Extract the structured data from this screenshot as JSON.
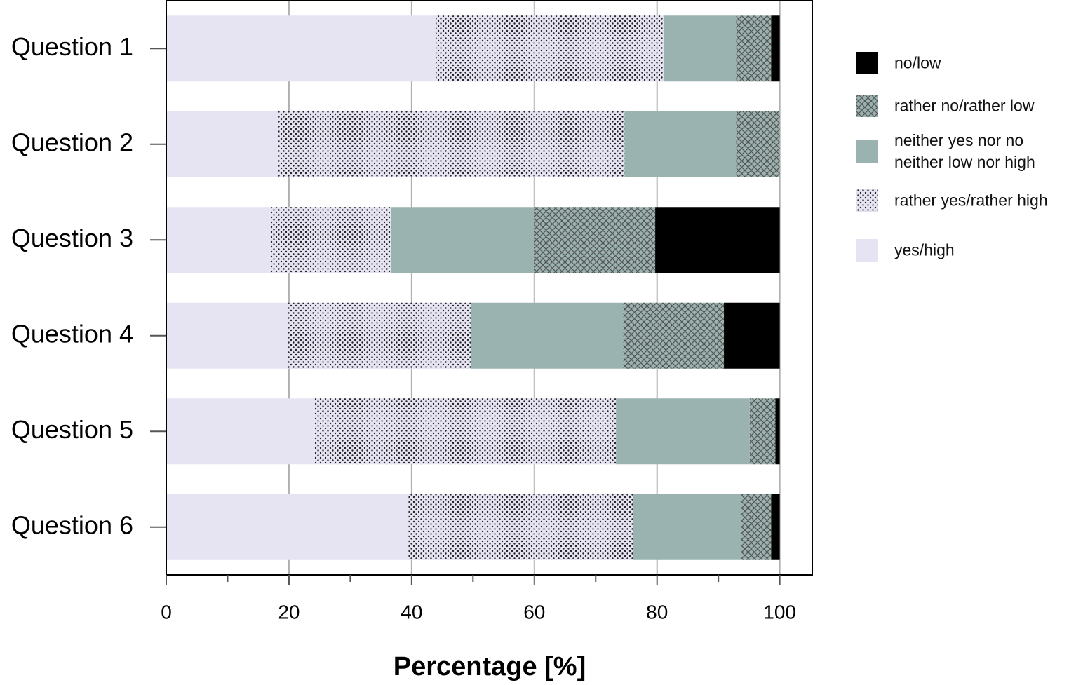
{
  "chart_data": {
    "type": "stacked-barh",
    "xlabel": "Percentage [%]",
    "categories": [
      "Question 1",
      "Question 2",
      "Question 3",
      "Question 4",
      "Question 5",
      "Question 6"
    ],
    "series": [
      {
        "name": "no/low",
        "color": "#000000",
        "hatch": "none",
        "values": [
          1.4,
          0,
          20.3,
          9.1,
          0.7,
          1.4
        ]
      },
      {
        "name": "rather no/rather low",
        "color": "#9bb3b0",
        "hatch": "cross",
        "values": [
          5.7,
          7.1,
          19.7,
          16.4,
          4.2,
          4.9
        ]
      },
      {
        "name": "neither yes nor no\nneither low nor high",
        "color": "#9bb3b0",
        "hatch": "none",
        "values": [
          11.8,
          18.2,
          23.4,
          24.8,
          21.8,
          17.6
        ]
      },
      {
        "name": "rather yes/rather high",
        "color": "#e6e4f2",
        "hatch": "dots",
        "values": [
          37.2,
          56.4,
          19.7,
          29.8,
          49.1,
          36.6
        ]
      },
      {
        "name": "yes/high",
        "color": "#e6e4f2",
        "hatch": "none",
        "values": [
          43.9,
          18.3,
          16.9,
          19.9,
          24.2,
          39.5
        ]
      }
    ],
    "xlim": [
      0,
      105.3
    ],
    "xticks": [
      0,
      20,
      40,
      60,
      80,
      100
    ],
    "xminor_ticks": [
      10,
      30,
      50,
      70,
      90
    ],
    "grid": true,
    "legend": "right"
  }
}
